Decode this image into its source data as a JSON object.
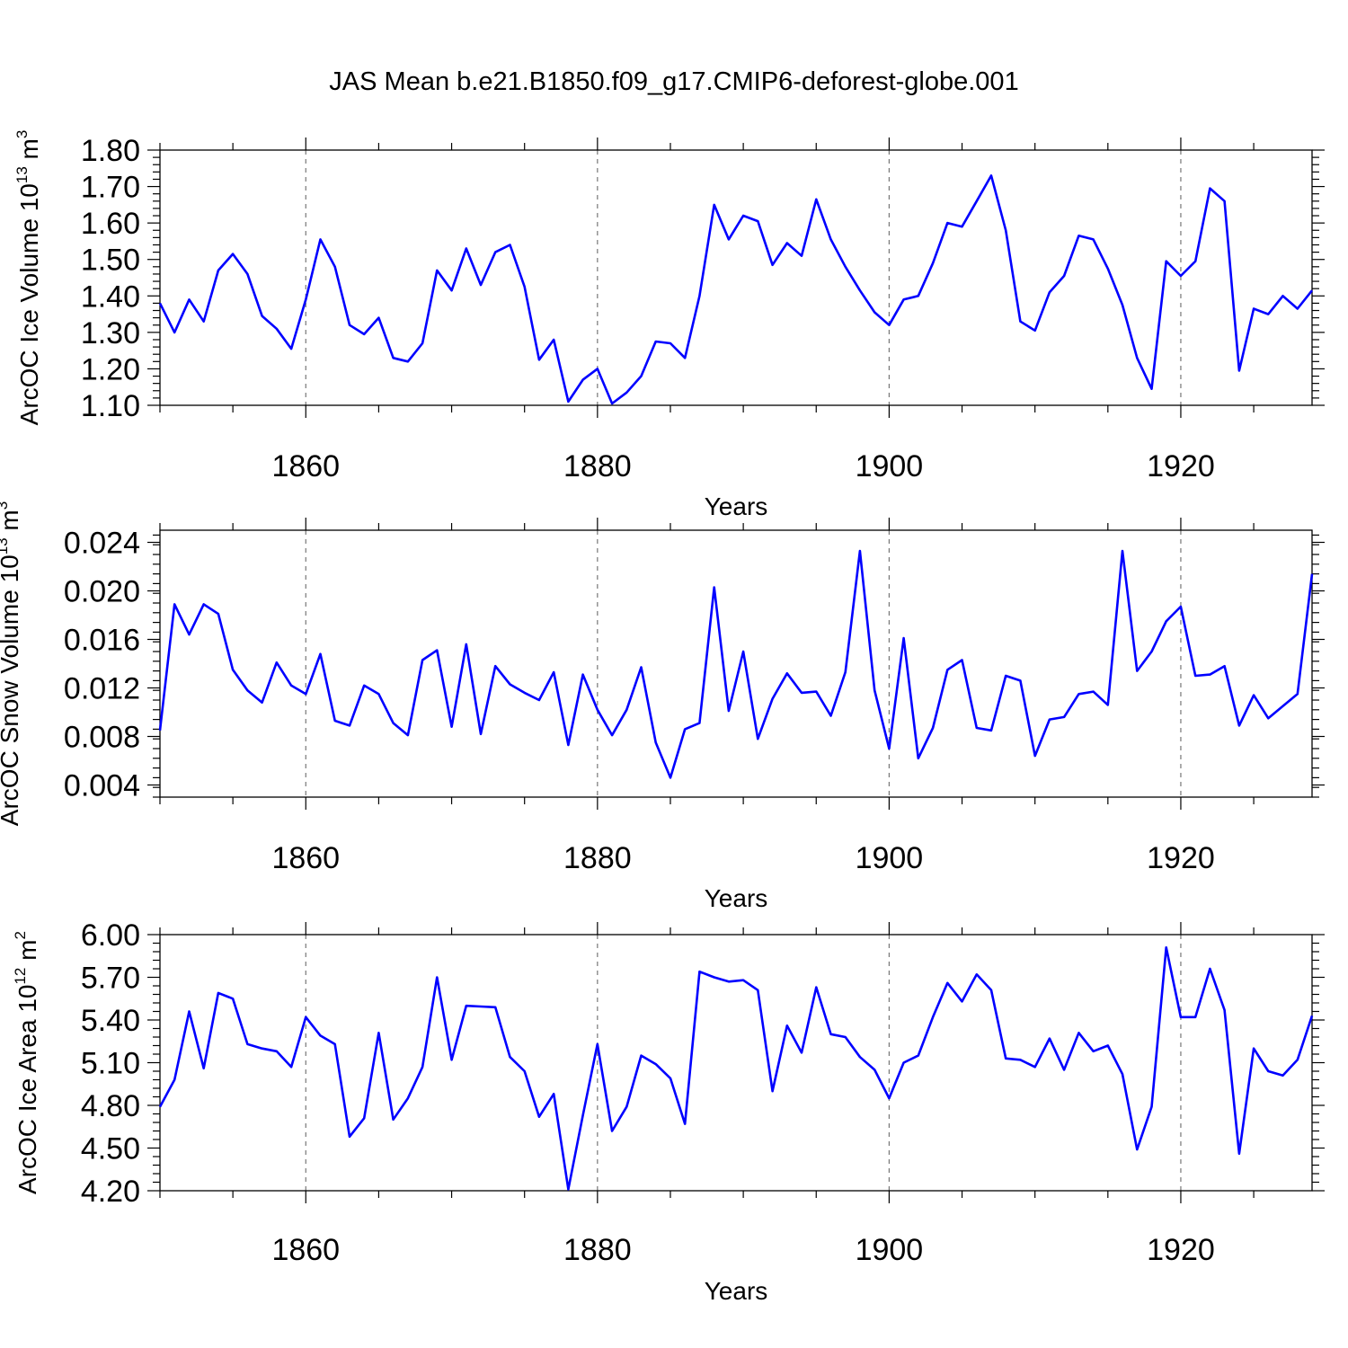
{
  "figure": {
    "title": "JAS Mean b.e21.B1850.f09_g17.CMIP6-deforest-globe.001"
  },
  "colors": {
    "series": "#0000ff",
    "grid": "#777777",
    "frame": "#000000"
  },
  "chart_data": [
    {
      "type": "line",
      "ylabel_main": "ArcOC Ice Volume 10",
      "ylabel_exp": "13",
      "ylabel_tail": " m",
      "ylabel_tail_exp": "3",
      "xlabel": "Years",
      "xlim": [
        1850,
        1929
      ],
      "ylim": [
        1.1,
        1.8
      ],
      "xticks": [
        1860,
        1880,
        1900,
        1920
      ],
      "xtick_labels": [
        "1860",
        "1880",
        "1900",
        "1920"
      ],
      "yticks": [
        1.1,
        1.2,
        1.3,
        1.4,
        1.5,
        1.6,
        1.7,
        1.8
      ],
      "ytick_labels": [
        "1.10",
        "1.20",
        "1.30",
        "1.40",
        "1.50",
        "1.60",
        "1.70",
        "1.80"
      ],
      "grid": "vertical dashed at major x ticks",
      "x_start": 1850,
      "series": [
        {
          "values": [
            1.38,
            1.3,
            1.39,
            1.33,
            1.47,
            1.515,
            1.46,
            1.345,
            1.31,
            1.255,
            1.39,
            1.555,
            1.48,
            1.32,
            1.295,
            1.34,
            1.23,
            1.22,
            1.27,
            1.47,
            1.415,
            1.53,
            1.43,
            1.52,
            1.54,
            1.425,
            1.225,
            1.28,
            1.11,
            1.17,
            1.2,
            1.105,
            1.135,
            1.18,
            1.275,
            1.27,
            1.23,
            1.4,
            1.65,
            1.555,
            1.62,
            1.605,
            1.485,
            1.545,
            1.51,
            1.665,
            1.555,
            1.48,
            1.415,
            1.355,
            1.32,
            1.39,
            1.4,
            1.49,
            1.6,
            1.59,
            1.66,
            1.73,
            1.58,
            1.33,
            1.305,
            1.41,
            1.455,
            1.565,
            1.555,
            1.475,
            1.375,
            1.23,
            1.145,
            1.495,
            1.455,
            1.495,
            1.695,
            1.66,
            1.195,
            1.365,
            1.35,
            1.4,
            1.365,
            1.415
          ]
        }
      ]
    },
    {
      "type": "line",
      "ylabel_main": "ArcOC Snow Volume 10",
      "ylabel_exp": "13",
      "ylabel_tail": " m",
      "ylabel_tail_exp": "3",
      "xlabel": "Years",
      "xlim": [
        1850,
        1929
      ],
      "ylim": [
        0.003,
        0.025
      ],
      "xticks": [
        1860,
        1880,
        1900,
        1920
      ],
      "xtick_labels": [
        "1860",
        "1880",
        "1900",
        "1920"
      ],
      "yticks": [
        0.004,
        0.008,
        0.012,
        0.016,
        0.02,
        0.024
      ],
      "ytick_labels": [
        "0.004",
        "0.008",
        "0.012",
        "0.016",
        "0.020",
        "0.024"
      ],
      "grid": "vertical dashed at major x ticks",
      "x_start": 1850,
      "series": [
        {
          "values": [
            0.0085,
            0.0189,
            0.0164,
            0.0189,
            0.0181,
            0.0135,
            0.0118,
            0.0108,
            0.0141,
            0.0122,
            0.0115,
            0.0148,
            0.0093,
            0.0089,
            0.0122,
            0.0115,
            0.0091,
            0.0081,
            0.0143,
            0.0151,
            0.0088,
            0.0156,
            0.0082,
            0.0138,
            0.0123,
            0.0116,
            0.011,
            0.0133,
            0.0073,
            0.0131,
            0.0102,
            0.0081,
            0.0102,
            0.0137,
            0.0075,
            0.0046,
            0.0086,
            0.0091,
            0.0203,
            0.0101,
            0.015,
            0.0078,
            0.0111,
            0.0132,
            0.0116,
            0.0117,
            0.0097,
            0.0133,
            0.0233,
            0.0118,
            0.007,
            0.0161,
            0.0062,
            0.0087,
            0.0135,
            0.0143,
            0.0087,
            0.0085,
            0.013,
            0.0126,
            0.0064,
            0.0094,
            0.0096,
            0.0115,
            0.0117,
            0.0106,
            0.0233,
            0.0134,
            0.015,
            0.0175,
            0.0187,
            0.013,
            0.0131,
            0.0138,
            0.0089,
            0.0114,
            0.0095,
            0.0105,
            0.0115,
            0.0214
          ]
        }
      ]
    },
    {
      "type": "line",
      "ylabel_main": "ArcOC Ice Area 10",
      "ylabel_exp": "12",
      "ylabel_tail": " m",
      "ylabel_tail_exp": "2",
      "xlabel": "Years",
      "xlim": [
        1850,
        1929
      ],
      "ylim": [
        4.2,
        6.0
      ],
      "xticks": [
        1860,
        1880,
        1900,
        1920
      ],
      "xtick_labels": [
        "1860",
        "1880",
        "1900",
        "1920"
      ],
      "yticks": [
        4.2,
        4.5,
        4.8,
        5.1,
        5.4,
        5.7,
        6.0
      ],
      "ytick_labels": [
        "4.20",
        "4.50",
        "4.80",
        "5.10",
        "5.40",
        "5.70",
        "6.00"
      ],
      "grid": "vertical dashed at major x ticks",
      "x_start": 1850,
      "series": [
        {
          "values": [
            4.79,
            4.98,
            5.46,
            5.06,
            5.59,
            5.55,
            5.23,
            5.2,
            5.18,
            5.07,
            5.42,
            5.29,
            5.23,
            4.58,
            4.71,
            5.31,
            4.7,
            4.85,
            5.07,
            5.7,
            5.12,
            5.5,
            5.495,
            5.49,
            5.14,
            5.04,
            4.72,
            4.88,
            4.21,
            4.73,
            5.23,
            4.62,
            4.79,
            5.15,
            5.09,
            4.99,
            4.67,
            5.74,
            5.7,
            5.67,
            5.68,
            5.61,
            4.9,
            5.36,
            5.17,
            5.63,
            5.3,
            5.28,
            5.14,
            5.05,
            4.85,
            5.1,
            5.15,
            5.42,
            5.66,
            5.53,
            5.72,
            5.61,
            5.13,
            5.12,
            5.07,
            5.27,
            5.05,
            5.31,
            5.18,
            5.22,
            5.02,
            4.49,
            4.79,
            5.91,
            5.42,
            5.42,
            5.76,
            5.47,
            4.46,
            5.2,
            5.04,
            5.01,
            5.12,
            5.43
          ]
        }
      ]
    }
  ]
}
